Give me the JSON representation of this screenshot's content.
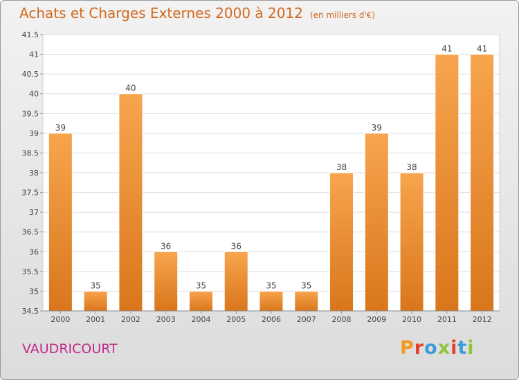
{
  "header": {
    "title": "Achats et Charges Externes 2000 à 2012",
    "subtitle": "(en milliers d'€)"
  },
  "footer": {
    "town": "VAUDRICOURT",
    "logo": [
      "P",
      "r",
      "o",
      "x",
      "i",
      "t",
      "i"
    ]
  },
  "colors": {
    "title": "#d2691e",
    "town": "#c02a8a",
    "bar_top": "#f7a54e",
    "bar_bottom": "#d9761c",
    "logo": [
      "#f39a1f",
      "#e2412a",
      "#3f9ad8",
      "#8cc63f",
      "#e2412a",
      "#3f9ad8",
      "#8cc63f"
    ]
  },
  "chart_data": {
    "type": "bar",
    "categories": [
      "2000",
      "2001",
      "2002",
      "2003",
      "2004",
      "2005",
      "2006",
      "2007",
      "2008",
      "2009",
      "2010",
      "2011",
      "2012"
    ],
    "values": [
      39,
      35,
      40,
      36,
      35,
      36,
      35,
      35,
      38,
      39,
      38,
      41,
      41
    ],
    "labels": [
      "39",
      "35",
      "40",
      "36",
      "35",
      "36",
      "35",
      "35",
      "38",
      "39",
      "38",
      "41",
      "41"
    ],
    "yticks": [
      34.5,
      35,
      35.5,
      36,
      36.5,
      37,
      37.5,
      38,
      38.5,
      39,
      39.5,
      40,
      40.5,
      41,
      41.5
    ],
    "ylim": [
      34.5,
      41.5
    ],
    "xlabel": "",
    "ylabel": "",
    "grid": true
  }
}
